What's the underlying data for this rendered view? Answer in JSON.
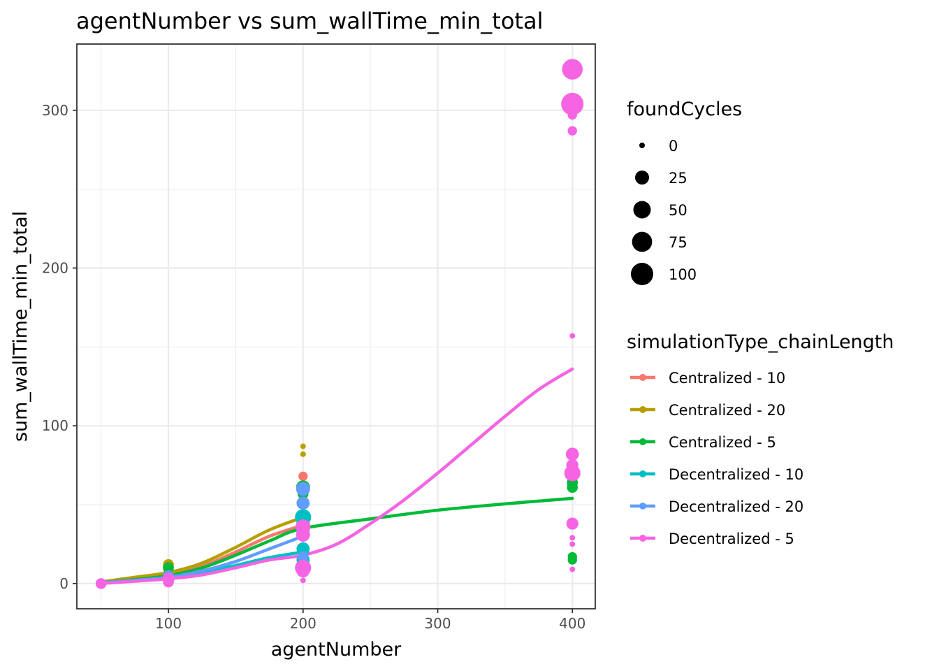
{
  "chart_data": {
    "type": "scatter",
    "title": "agentNumber  vs  sum_wallTime_min_total",
    "xlabel": "agentNumber",
    "ylabel": "sum_wallTime_min_total",
    "xlim": [
      32,
      417
    ],
    "ylim": [
      -16,
      342
    ],
    "x_ticks": [
      100,
      200,
      300,
      400
    ],
    "x_tick_labels": [
      "100",
      "200",
      "300",
      "400"
    ],
    "y_ticks": [
      0,
      100,
      200,
      300
    ],
    "y_tick_labels": [
      "0",
      "100",
      "200",
      "300"
    ],
    "grid": true,
    "legend_position": "right",
    "size_legend": {
      "title": "foundCycles",
      "entries": [
        {
          "label": "0",
          "value": 0
        },
        {
          "label": "25",
          "value": 25
        },
        {
          "label": "50",
          "value": 50
        },
        {
          "label": "75",
          "value": 75
        },
        {
          "label": "100",
          "value": 100
        }
      ]
    },
    "color_legend": {
      "title": "simulationType_chainLength"
    },
    "series": [
      {
        "name": "Centralized - 10",
        "color": "#F8766D",
        "points": [
          {
            "x": 50,
            "y": 1,
            "size": 0
          },
          {
            "x": 100,
            "y": 6,
            "size": 5
          },
          {
            "x": 200,
            "y": 68,
            "size": 5
          },
          {
            "x": 200,
            "y": 40,
            "size": 20
          },
          {
            "x": 200,
            "y": 36,
            "size": 30
          },
          {
            "x": 200,
            "y": 30,
            "size": 10
          }
        ],
        "fit": [
          {
            "x": 50,
            "y": 0.5
          },
          {
            "x": 75,
            "y": 2.5
          },
          {
            "x": 100,
            "y": 6
          },
          {
            "x": 125,
            "y": 11
          },
          {
            "x": 150,
            "y": 20
          },
          {
            "x": 175,
            "y": 30
          },
          {
            "x": 200,
            "y": 37
          }
        ]
      },
      {
        "name": "Centralized - 20",
        "color": "#B79F00",
        "points": [
          {
            "x": 50,
            "y": 1,
            "size": 0
          },
          {
            "x": 100,
            "y": 12,
            "size": 10
          },
          {
            "x": 100,
            "y": 8,
            "size": 5
          },
          {
            "x": 200,
            "y": 87,
            "size": 0
          },
          {
            "x": 200,
            "y": 82,
            "size": 0
          },
          {
            "x": 200,
            "y": 38,
            "size": 20
          }
        ],
        "fit": [
          {
            "x": 50,
            "y": 1
          },
          {
            "x": 75,
            "y": 4
          },
          {
            "x": 100,
            "y": 7
          },
          {
            "x": 125,
            "y": 13
          },
          {
            "x": 150,
            "y": 23
          },
          {
            "x": 175,
            "y": 34
          },
          {
            "x": 200,
            "y": 42
          }
        ]
      },
      {
        "name": "Centralized - 5",
        "color": "#00BA38",
        "points": [
          {
            "x": 50,
            "y": 0.5,
            "size": 0
          },
          {
            "x": 100,
            "y": 10,
            "size": 10
          },
          {
            "x": 200,
            "y": 61,
            "size": 25
          },
          {
            "x": 200,
            "y": 57,
            "size": 10
          },
          {
            "x": 200,
            "y": 38,
            "size": 20
          },
          {
            "x": 200,
            "y": 20,
            "size": 10
          },
          {
            "x": 400,
            "y": 81,
            "size": 0
          },
          {
            "x": 400,
            "y": 72,
            "size": 10
          },
          {
            "x": 400,
            "y": 68,
            "size": 10
          },
          {
            "x": 400,
            "y": 64,
            "size": 10
          },
          {
            "x": 400,
            "y": 61,
            "size": 10
          },
          {
            "x": 400,
            "y": 17,
            "size": 5
          },
          {
            "x": 400,
            "y": 15,
            "size": 5
          }
        ],
        "fit": [
          {
            "x": 50,
            "y": 0.5
          },
          {
            "x": 75,
            "y": 2.5
          },
          {
            "x": 100,
            "y": 5
          },
          {
            "x": 125,
            "y": 10
          },
          {
            "x": 150,
            "y": 18
          },
          {
            "x": 175,
            "y": 27
          },
          {
            "x": 200,
            "y": 35
          },
          {
            "x": 250,
            "y": 41
          },
          {
            "x": 300,
            "y": 46.5
          },
          {
            "x": 350,
            "y": 50.5
          },
          {
            "x": 400,
            "y": 54
          }
        ]
      },
      {
        "name": "Decentralized - 10",
        "color": "#00BFC4",
        "points": [
          {
            "x": 50,
            "y": 1,
            "size": 0
          },
          {
            "x": 100,
            "y": 4,
            "size": 5
          },
          {
            "x": 200,
            "y": 42,
            "size": 40
          },
          {
            "x": 200,
            "y": 22,
            "size": 20
          },
          {
            "x": 200,
            "y": 15,
            "size": 20
          },
          {
            "x": 200,
            "y": 12,
            "size": 10
          }
        ],
        "fit": [
          {
            "x": 50,
            "y": 0.5
          },
          {
            "x": 75,
            "y": 2
          },
          {
            "x": 100,
            "y": 4
          },
          {
            "x": 125,
            "y": 7
          },
          {
            "x": 150,
            "y": 11.5
          },
          {
            "x": 175,
            "y": 16.5
          },
          {
            "x": 200,
            "y": 20
          }
        ]
      },
      {
        "name": "Decentralized - 20",
        "color": "#619CFF",
        "points": [
          {
            "x": 50,
            "y": 1,
            "size": 0
          },
          {
            "x": 100,
            "y": 5,
            "size": 10
          },
          {
            "x": 200,
            "y": 60,
            "size": 25
          },
          {
            "x": 200,
            "y": 51,
            "size": 20
          },
          {
            "x": 200,
            "y": 33,
            "size": 20
          },
          {
            "x": 200,
            "y": 17,
            "size": 10
          }
        ],
        "fit": [
          {
            "x": 50,
            "y": 0.5
          },
          {
            "x": 75,
            "y": 2
          },
          {
            "x": 100,
            "y": 4
          },
          {
            "x": 125,
            "y": 8
          },
          {
            "x": 150,
            "y": 14
          },
          {
            "x": 175,
            "y": 22
          },
          {
            "x": 200,
            "y": 30
          }
        ]
      },
      {
        "name": "Decentralized - 5",
        "color": "#F564E3",
        "points": [
          {
            "x": 50,
            "y": 0,
            "size": 10
          },
          {
            "x": 100,
            "y": 3,
            "size": 15
          },
          {
            "x": 100,
            "y": 1,
            "size": 10
          },
          {
            "x": 200,
            "y": 36,
            "size": 30
          },
          {
            "x": 200,
            "y": 31,
            "size": 25
          },
          {
            "x": 200,
            "y": 10,
            "size": 40
          },
          {
            "x": 200,
            "y": 8,
            "size": 20
          },
          {
            "x": 200,
            "y": 2,
            "size": 0
          },
          {
            "x": 400,
            "y": 326,
            "size": 80
          },
          {
            "x": 400,
            "y": 304,
            "size": 100
          },
          {
            "x": 400,
            "y": 297,
            "size": 5
          },
          {
            "x": 400,
            "y": 287,
            "size": 5
          },
          {
            "x": 400,
            "y": 157,
            "size": 0
          },
          {
            "x": 400,
            "y": 82,
            "size": 20
          },
          {
            "x": 400,
            "y": 75,
            "size": 15
          },
          {
            "x": 400,
            "y": 70,
            "size": 40
          },
          {
            "x": 400,
            "y": 38,
            "size": 15
          },
          {
            "x": 400,
            "y": 29,
            "size": 0
          },
          {
            "x": 400,
            "y": 25,
            "size": 0
          },
          {
            "x": 400,
            "y": 9,
            "size": 0
          }
        ],
        "fit": [
          {
            "x": 50,
            "y": 0
          },
          {
            "x": 75,
            "y": 1.5
          },
          {
            "x": 100,
            "y": 3
          },
          {
            "x": 125,
            "y": 5.5
          },
          {
            "x": 150,
            "y": 10
          },
          {
            "x": 175,
            "y": 15
          },
          {
            "x": 200,
            "y": 18
          },
          {
            "x": 225,
            "y": 25
          },
          {
            "x": 250,
            "y": 38
          },
          {
            "x": 275,
            "y": 53
          },
          {
            "x": 300,
            "y": 70
          },
          {
            "x": 325,
            "y": 88
          },
          {
            "x": 350,
            "y": 106
          },
          {
            "x": 375,
            "y": 123
          },
          {
            "x": 400,
            "y": 136
          }
        ]
      }
    ]
  }
}
